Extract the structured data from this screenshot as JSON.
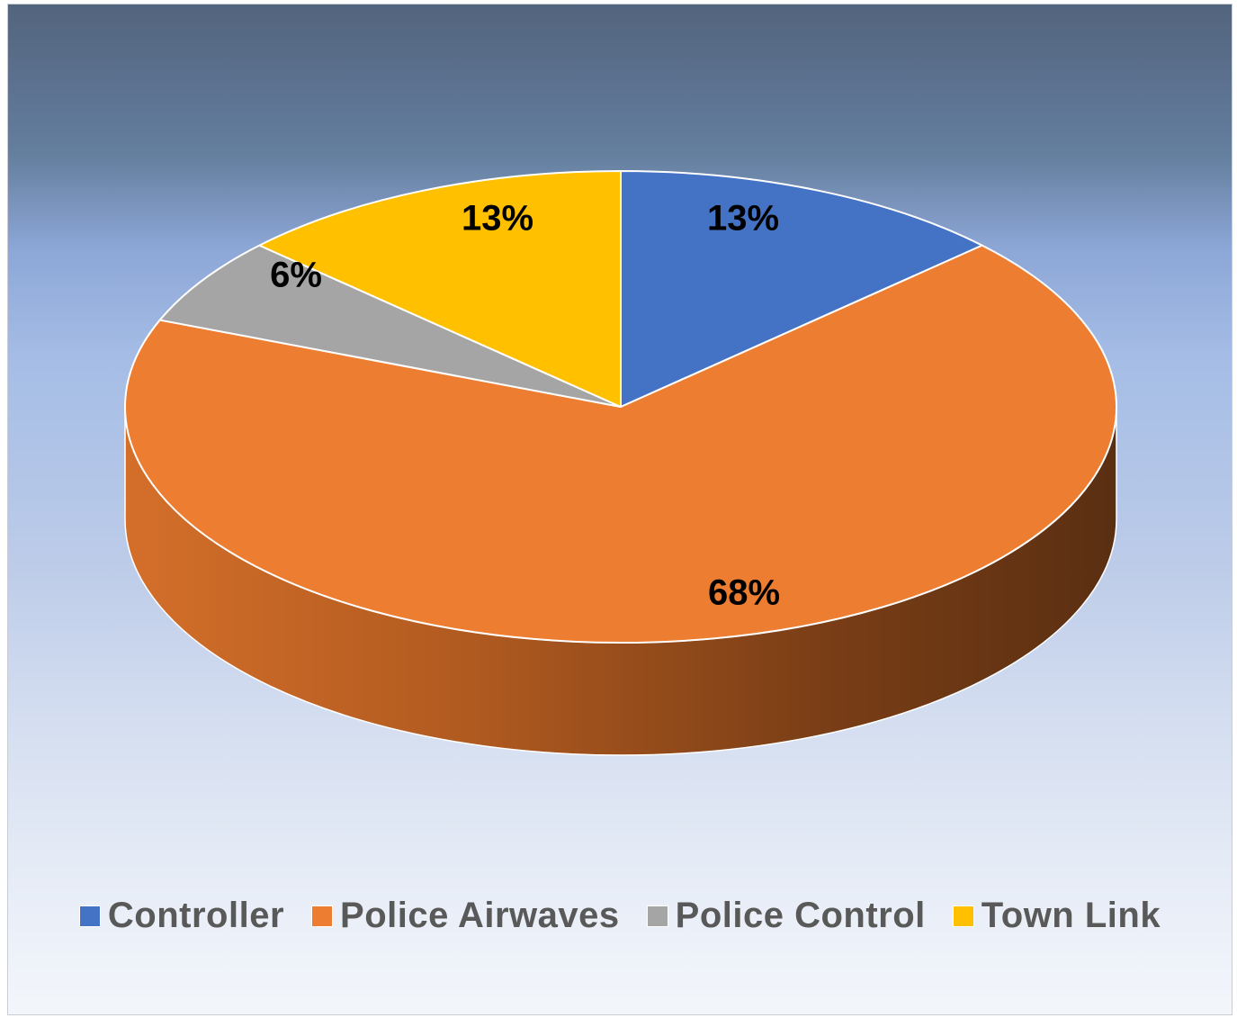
{
  "chart_data": {
    "type": "pie",
    "title": "",
    "three_d": true,
    "start_angle_deg": 0,
    "direction": "clockwise",
    "categories": [
      "Controller",
      "Police Airwaves",
      "Police Control",
      "Town Link"
    ],
    "values": [
      13,
      68,
      6,
      13
    ],
    "data_labels": [
      "13%",
      "68%",
      "6%",
      "13%"
    ],
    "colors": [
      "#4472C4",
      "#ED7D31",
      "#A5A5A5",
      "#FFC000"
    ],
    "legend_position": "bottom"
  }
}
